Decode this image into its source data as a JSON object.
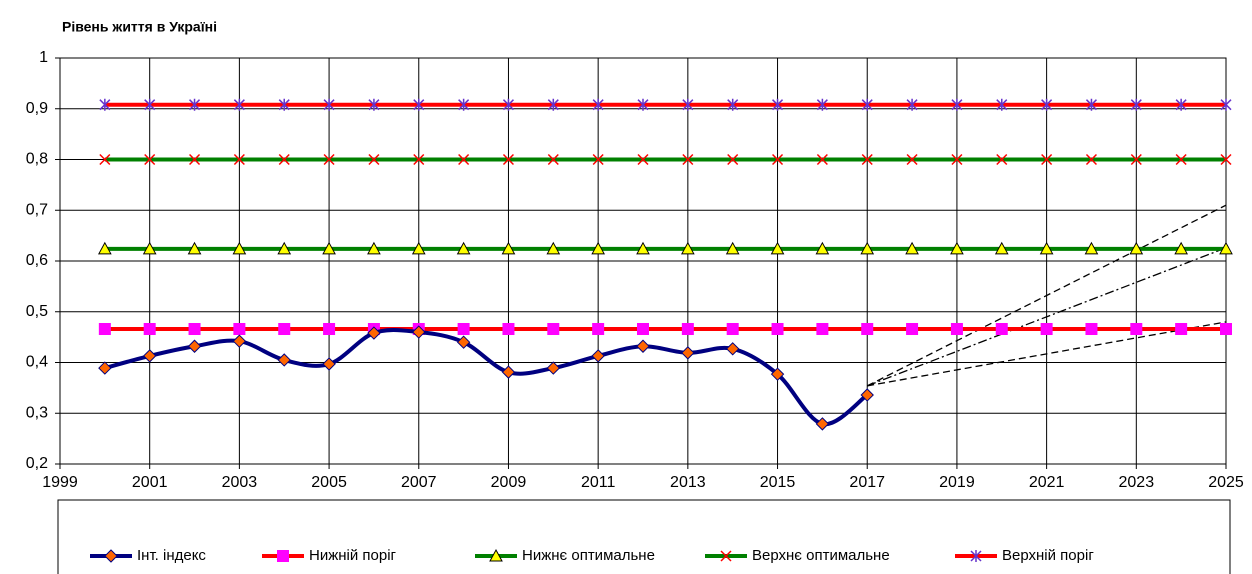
{
  "chart_data": {
    "type": "line",
    "title": "Рівень життя в Україні",
    "x": [
      2000,
      2001,
      2002,
      2003,
      2004,
      2005,
      2006,
      2007,
      2008,
      2009,
      2010,
      2011,
      2012,
      2013,
      2014,
      2015,
      2016,
      2017,
      2018,
      2019,
      2020,
      2021,
      2022,
      2023,
      2024,
      2025
    ],
    "xlim": [
      1999,
      2025
    ],
    "xticks": [
      1999,
      2001,
      2003,
      2005,
      2007,
      2009,
      2011,
      2013,
      2015,
      2017,
      2019,
      2021,
      2023,
      2025
    ],
    "ylim": [
      0.2,
      1
    ],
    "yticks": [
      {
        "value": 0.2,
        "label": "0,2"
      },
      {
        "value": 0.3,
        "label": "0,3"
      },
      {
        "value": 0.4,
        "label": "0,4"
      },
      {
        "value": 0.5,
        "label": "0,5"
      },
      {
        "value": 0.6,
        "label": "0,6"
      },
      {
        "value": 0.7,
        "label": "0,7"
      },
      {
        "value": 0.8,
        "label": "0,8"
      },
      {
        "value": 0.9,
        "label": "0,9"
      },
      1
    ],
    "grid": true,
    "legend": "bottom",
    "series": [
      {
        "name": "Інт. індекс",
        "color": "#000080",
        "marker": "diamond",
        "marker_color": "#ff6600",
        "smooth": true,
        "values": [
          0.389,
          0.413,
          0.432,
          0.442,
          0.405,
          0.397,
          0.458,
          0.46,
          0.44,
          0.381,
          0.389,
          0.413,
          0.432,
          0.419,
          0.427,
          0.377,
          0.279,
          0.336,
          null,
          null,
          null,
          null,
          null,
          null,
          null,
          null
        ]
      },
      {
        "name": "Нижній поріг",
        "color": "#ff0000",
        "marker": "square",
        "marker_color": "#ff00ff",
        "values": [
          0.466,
          0.466,
          0.466,
          0.466,
          0.466,
          0.466,
          0.466,
          0.466,
          0.466,
          0.466,
          0.466,
          0.466,
          0.466,
          0.466,
          0.466,
          0.466,
          0.466,
          0.466,
          0.466,
          0.466,
          0.466,
          0.466,
          0.466,
          0.466,
          0.466,
          0.466
        ]
      },
      {
        "name": "Нижнє оптимальне",
        "color": "#008000",
        "marker": "triangle",
        "marker_color": "#ffff00",
        "values": [
          0.624,
          0.624,
          0.624,
          0.624,
          0.624,
          0.624,
          0.624,
          0.624,
          0.624,
          0.624,
          0.624,
          0.624,
          0.624,
          0.624,
          0.624,
          0.624,
          0.624,
          0.624,
          0.624,
          0.624,
          0.624,
          0.624,
          0.624,
          0.624,
          0.624,
          0.624
        ]
      },
      {
        "name": "Верхнє оптимальне",
        "color": "#008000",
        "marker": "x",
        "marker_color": "#ff0000",
        "values": [
          0.8,
          0.8,
          0.8,
          0.8,
          0.8,
          0.8,
          0.8,
          0.8,
          0.8,
          0.8,
          0.8,
          0.8,
          0.8,
          0.8,
          0.8,
          0.8,
          0.8,
          0.8,
          0.8,
          0.8,
          0.8,
          0.8,
          0.8,
          0.8,
          0.8,
          0.8
        ]
      },
      {
        "name": "Верхній поріг",
        "color": "#ff0000",
        "marker": "star",
        "marker_color": "#6633cc",
        "values": [
          0.908,
          0.908,
          0.908,
          0.908,
          0.908,
          0.908,
          0.908,
          0.908,
          0.908,
          0.908,
          0.908,
          0.908,
          0.908,
          0.908,
          0.908,
          0.908,
          0.908,
          0.908,
          0.908,
          0.908,
          0.908,
          0.908,
          0.908,
          0.908,
          0.908,
          0.908
        ]
      }
    ],
    "trends": [
      {
        "x": [
          2017,
          2025
        ],
        "values": [
          0.354,
          0.71
        ],
        "color": "#000000",
        "dash": "dashed"
      },
      {
        "x": [
          2017,
          2025
        ],
        "values": [
          0.354,
          0.626
        ],
        "color": "#000000",
        "dash": "dashdot"
      },
      {
        "x": [
          2017,
          2025
        ],
        "values": [
          0.354,
          0.48
        ],
        "color": "#000000",
        "dash": "dashed"
      }
    ]
  }
}
